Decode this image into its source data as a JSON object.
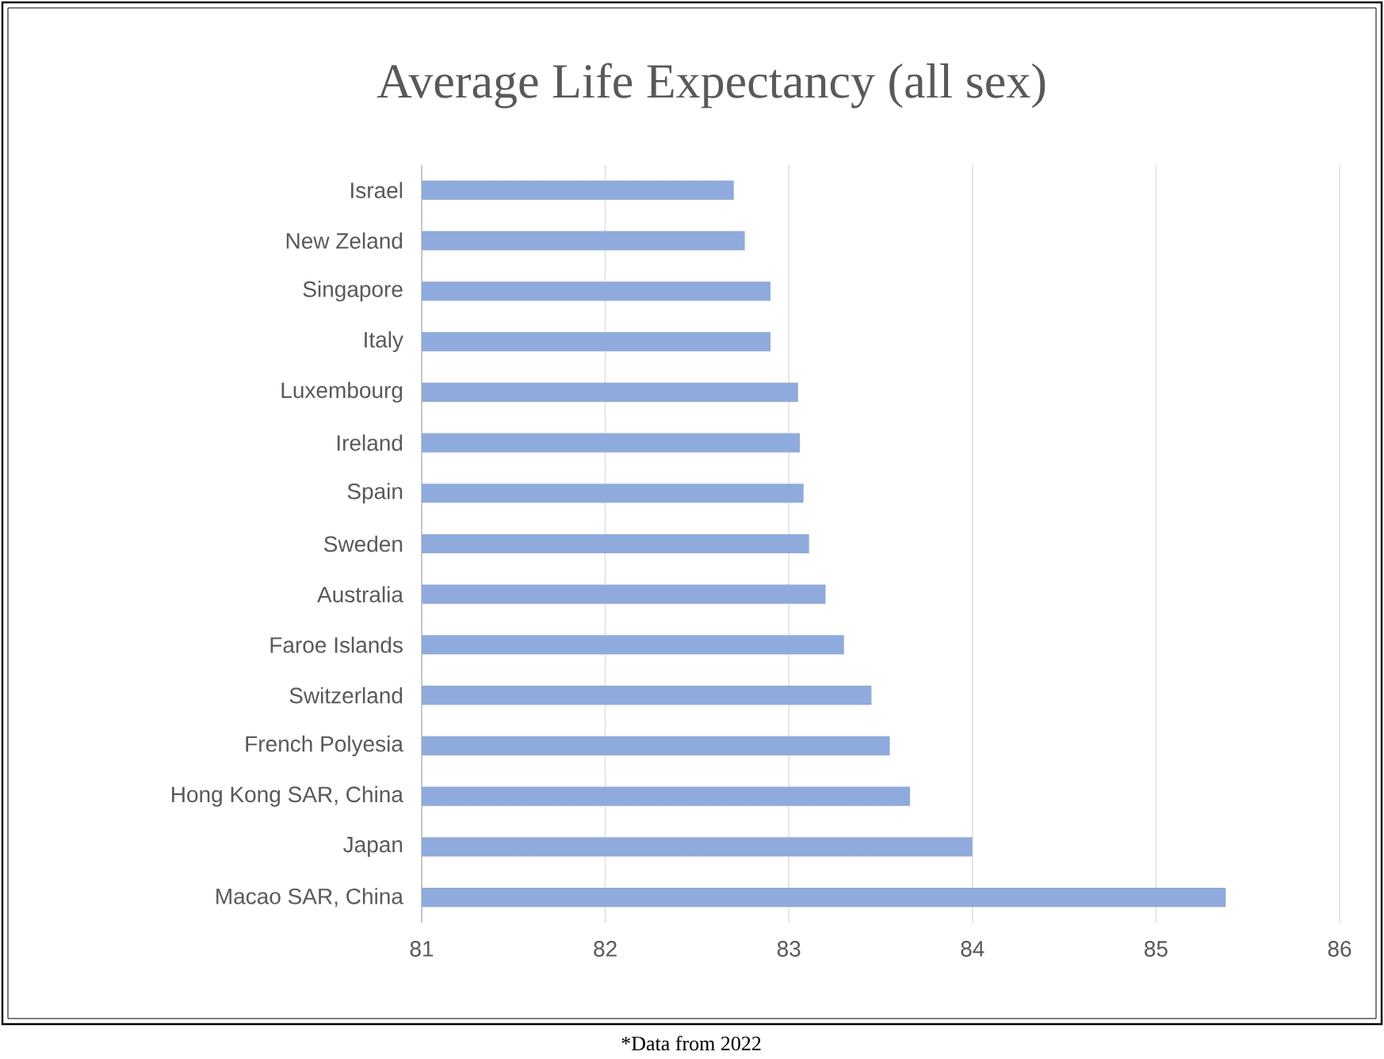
{
  "chart_data": {
    "type": "bar",
    "orientation": "horizontal",
    "title": "Average Life Expectancy (all sex)",
    "categories": [
      "Israel",
      "New Zeland",
      "Singapore",
      "Italy",
      "Luxembourg",
      "Ireland",
      "Spain",
      "Sweden",
      "Australia",
      "Faroe Islands",
      "Switzerland",
      "French Polyesia",
      "Hong Kong SAR, China",
      "Japan",
      "Macao SAR, China"
    ],
    "values": [
      82.7,
      82.76,
      82.9,
      82.9,
      83.05,
      83.06,
      83.08,
      83.11,
      83.2,
      83.3,
      83.45,
      83.55,
      83.66,
      84.0,
      85.38
    ],
    "color": "#8faadc",
    "xlim": [
      81,
      86
    ],
    "xticks": [
      81,
      82,
      83,
      84,
      85,
      86
    ],
    "grid": "x",
    "annotations": [
      "*Data from 2022"
    ]
  }
}
